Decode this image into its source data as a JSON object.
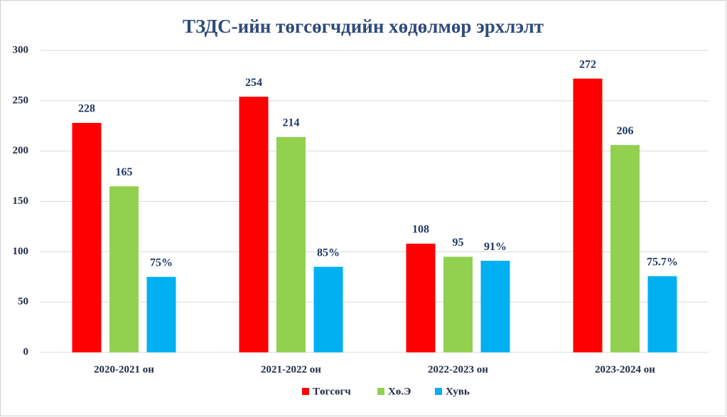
{
  "chart_data": {
    "type": "bar",
    "title": "ТЗДС-ийн төгсөгчдийн хөдөлмөр эрхлэлт",
    "categories": [
      "2020-2021 он",
      "2021-2022 он",
      "2022-2023 он",
      "2023-2024 он"
    ],
    "series": [
      {
        "name": "Төгсөгч",
        "color": "#ff0000",
        "values": [
          228,
          254,
          108,
          272
        ]
      },
      {
        "name": "Хө.Э",
        "color": "#92d050",
        "values": [
          165,
          214,
          95,
          206
        ]
      },
      {
        "name": "Хувь",
        "color": "#00b0f0",
        "values": [
          75,
          85,
          91,
          75.7
        ],
        "value_labels": [
          "75%",
          "85%",
          "91%",
          "75.7%"
        ]
      }
    ],
    "ylim": [
      0,
      300
    ],
    "yticks": [
      0,
      50,
      100,
      150,
      200,
      250,
      300
    ],
    "grid": true,
    "legend": "bottom"
  }
}
